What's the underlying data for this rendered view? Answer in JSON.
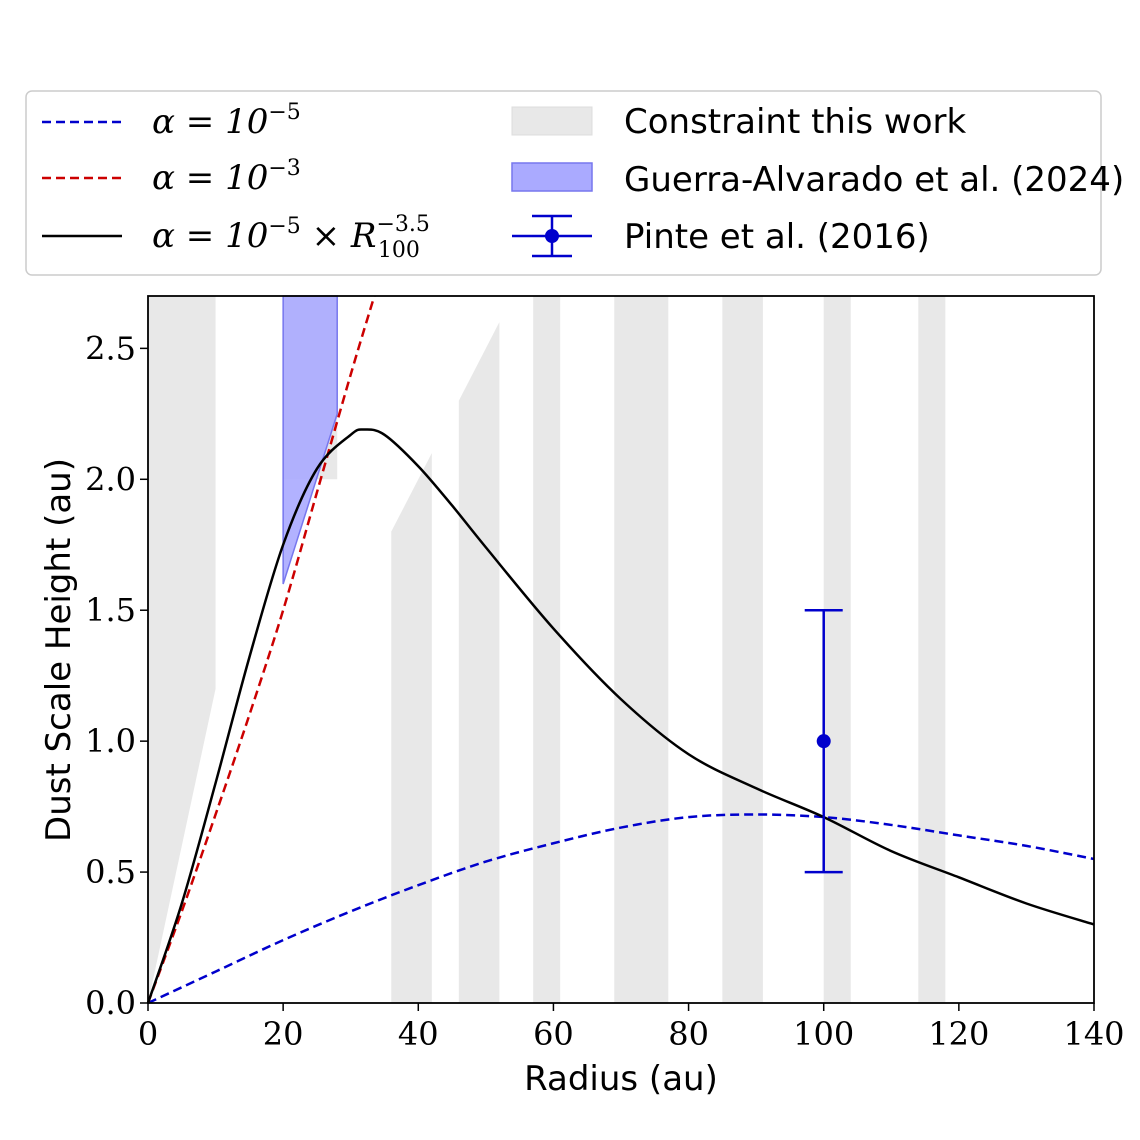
{
  "chart_data": {
    "type": "line",
    "xlabel": "Radius (au)",
    "ylabel": "Dust Scale Height (au)",
    "xlim": [
      0,
      140
    ],
    "ylim": [
      0,
      2.7
    ],
    "x_ticks": [
      0,
      20,
      40,
      60,
      80,
      100,
      120,
      140
    ],
    "x_tick_labels": [
      "0",
      "20",
      "40",
      "60",
      "80",
      "100",
      "120",
      "140"
    ],
    "y_ticks": [
      0.0,
      0.5,
      1.0,
      1.5,
      2.0,
      2.5
    ],
    "y_tick_labels": [
      "0.0",
      "0.5",
      "1.0",
      "1.5",
      "2.0",
      "2.5"
    ],
    "grid": false,
    "legend": {
      "placement": "top, above plot",
      "entries": [
        {
          "label": "α = 10",
          "sup": "−5",
          "style": "dashed",
          "color": "#0000cc"
        },
        {
          "label": "α = 10",
          "sup": "−3",
          "style": "dashed",
          "color": "#cc0000"
        },
        {
          "label": "α = 10",
          "sup": "−5",
          "label2": " × R",
          "sup2": "−3.5",
          "sub2": "100",
          "style": "solid",
          "color": "#000000"
        },
        {
          "label": "Constraint this work",
          "style": "patch",
          "color": "#e6e6e6"
        },
        {
          "label": "Guerra-Alvarado et al. (2024)",
          "style": "patch",
          "color": "#aaaaff"
        },
        {
          "label": "Pinte et al. (2016)",
          "style": "errorbar",
          "color": "#0000cc"
        }
      ]
    },
    "series": [
      {
        "name": "α = 10^−5",
        "style": "dashed",
        "color": "#0000cc",
        "x": [
          0,
          10,
          20,
          30,
          40,
          50,
          60,
          70,
          80,
          90,
          100,
          110,
          120,
          130,
          140
        ],
        "y": [
          0,
          0.12,
          0.24,
          0.35,
          0.45,
          0.54,
          0.61,
          0.67,
          0.71,
          0.72,
          0.71,
          0.68,
          0.64,
          0.6,
          0.55
        ]
      },
      {
        "name": "α = 10^−3",
        "style": "dashed",
        "color": "#cc0000",
        "x": [
          0,
          5,
          10,
          15,
          20,
          25,
          30,
          33.5
        ],
        "y": [
          0,
          0.35,
          0.72,
          1.1,
          1.5,
          1.95,
          2.4,
          2.7
        ]
      },
      {
        "name": "α = 10^−5 × R_100^−3.5",
        "style": "solid",
        "color": "#000000",
        "x": [
          0,
          5,
          10,
          15,
          20,
          25,
          30,
          32,
          35,
          40,
          45,
          50,
          60,
          70,
          80,
          90,
          100,
          110,
          120,
          130,
          140
        ],
        "y": [
          0,
          0.38,
          0.84,
          1.32,
          1.75,
          2.04,
          2.17,
          2.19,
          2.17,
          2.05,
          1.9,
          1.74,
          1.43,
          1.16,
          0.95,
          0.82,
          0.71,
          0.58,
          0.48,
          0.38,
          0.3
        ]
      }
    ],
    "constraint_regions": [
      {
        "polygon": [
          [
            0,
            0
          ],
          [
            0,
            2.7
          ],
          [
            10,
            2.7
          ],
          [
            10,
            1.2
          ]
        ]
      },
      {
        "polygon": [
          [
            36,
            0
          ],
          [
            36,
            1.8
          ],
          [
            42,
            2.1
          ],
          [
            42,
            0
          ]
        ]
      },
      {
        "polygon": [
          [
            46,
            0
          ],
          [
            46,
            2.3
          ],
          [
            52,
            2.6
          ],
          [
            52,
            0
          ]
        ]
      },
      {
        "polygon": [
          [
            57,
            0
          ],
          [
            57,
            2.7
          ],
          [
            61,
            2.7
          ],
          [
            61,
            0
          ]
        ]
      },
      {
        "polygon": [
          [
            69,
            0
          ],
          [
            69,
            2.7
          ],
          [
            77,
            2.7
          ],
          [
            77,
            0
          ]
        ]
      },
      {
        "polygon": [
          [
            85,
            0
          ],
          [
            85,
            2.7
          ],
          [
            91,
            2.7
          ],
          [
            91,
            0
          ]
        ]
      },
      {
        "polygon": [
          [
            100,
            0
          ],
          [
            100,
            2.7
          ],
          [
            104,
            2.7
          ],
          [
            104,
            0
          ]
        ]
      },
      {
        "polygon": [
          [
            114,
            0
          ],
          [
            114,
            2.7
          ],
          [
            118,
            2.7
          ],
          [
            118,
            0
          ]
        ]
      },
      {
        "polygon": [
          [
            20,
            2.0
          ],
          [
            20,
            2.7
          ],
          [
            28,
            2.7
          ],
          [
            28,
            2.0
          ]
        ]
      }
    ],
    "guerra_region": {
      "polygon": [
        [
          20,
          2.7
        ],
        [
          28,
          2.7
        ],
        [
          28,
          2.25
        ],
        [
          20,
          1.6
        ]
      ]
    },
    "pinte_point": {
      "x": 100,
      "y": 1.0,
      "yerr_low": 0.5,
      "yerr_high": 0.5
    }
  }
}
